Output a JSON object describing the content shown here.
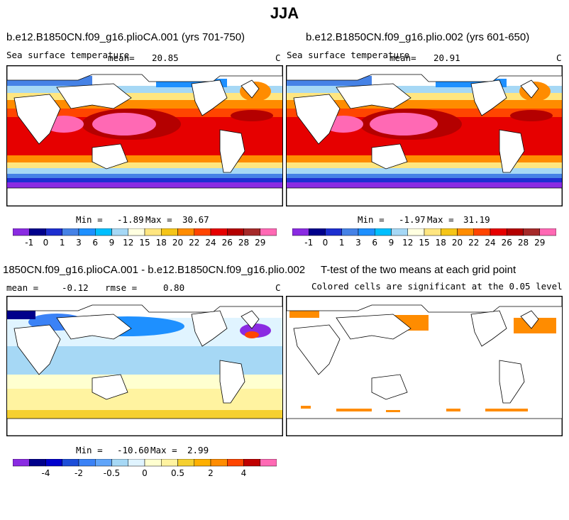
{
  "figure_title": "JJA",
  "panels": {
    "p1": {
      "title": "b.e12.B1850CN.f09_g16.plioCA.001 (yrs 701-750)",
      "variable": "Sea surface temperature",
      "mean_label": "mean=",
      "mean_value": "20.85",
      "units": "C",
      "min_label": "Min =",
      "min_value": "-1.89",
      "max_label": "Max =",
      "max_value": "30.67"
    },
    "p2": {
      "title": "b.e12.B1850CN.f09_g16.plio.002 (yrs 601-650)",
      "variable": "Sea surface temperature",
      "mean_label": "mean=",
      "mean_value": "20.91",
      "units": "C",
      "min_label": "Min =",
      "min_value": "-1.97",
      "max_label": "Max =",
      "max_value": "31.19"
    },
    "p3": {
      "title": "1850CN.f09_g16.plioCA.001 - b.e12.B1850CN.f09_g16.plio.002",
      "mean_label": "mean =",
      "mean_value": "-0.12",
      "rmse_label": "rmse =",
      "rmse_value": "0.80",
      "units": "C",
      "min_label": "Min =",
      "min_value": "-10.60",
      "max_label": "Max =",
      "max_value": "2.99"
    },
    "p4": {
      "title": "T-test of the two means at each grid point",
      "subtitle": "Colored cells are significant at the 0.05 level"
    }
  },
  "colorbars": {
    "sst": {
      "colors": [
        "#8a2be2",
        "#00008b",
        "#1d2fd0",
        "#4682e6",
        "#1e90ff",
        "#00bfff",
        "#a6d8f5",
        "#ffffe0",
        "#ffe680",
        "#f5c518",
        "#ff8c00",
        "#ff4500",
        "#e60000",
        "#b40000",
        "#a52a2a",
        "#ff69b4"
      ],
      "labels": [
        "-1",
        "0",
        "1",
        "3",
        "6",
        "9",
        "12",
        "15",
        "18",
        "20",
        "22",
        "24",
        "26",
        "28",
        "29"
      ]
    },
    "diff": {
      "colors": [
        "#8a2be2",
        "#00008b",
        "#0000cd",
        "#1d4ed8",
        "#3b82f6",
        "#60a5fa",
        "#a6d8f5",
        "#e0f4ff",
        "#ffffd0",
        "#fff3a0",
        "#f5d030",
        "#ffb000",
        "#ff8c00",
        "#ff4500",
        "#c00000",
        "#ff69b4"
      ],
      "labels": [
        "-4",
        "-2",
        "-0.5",
        "0",
        "0.5",
        "2",
        "4"
      ]
    }
  }
}
